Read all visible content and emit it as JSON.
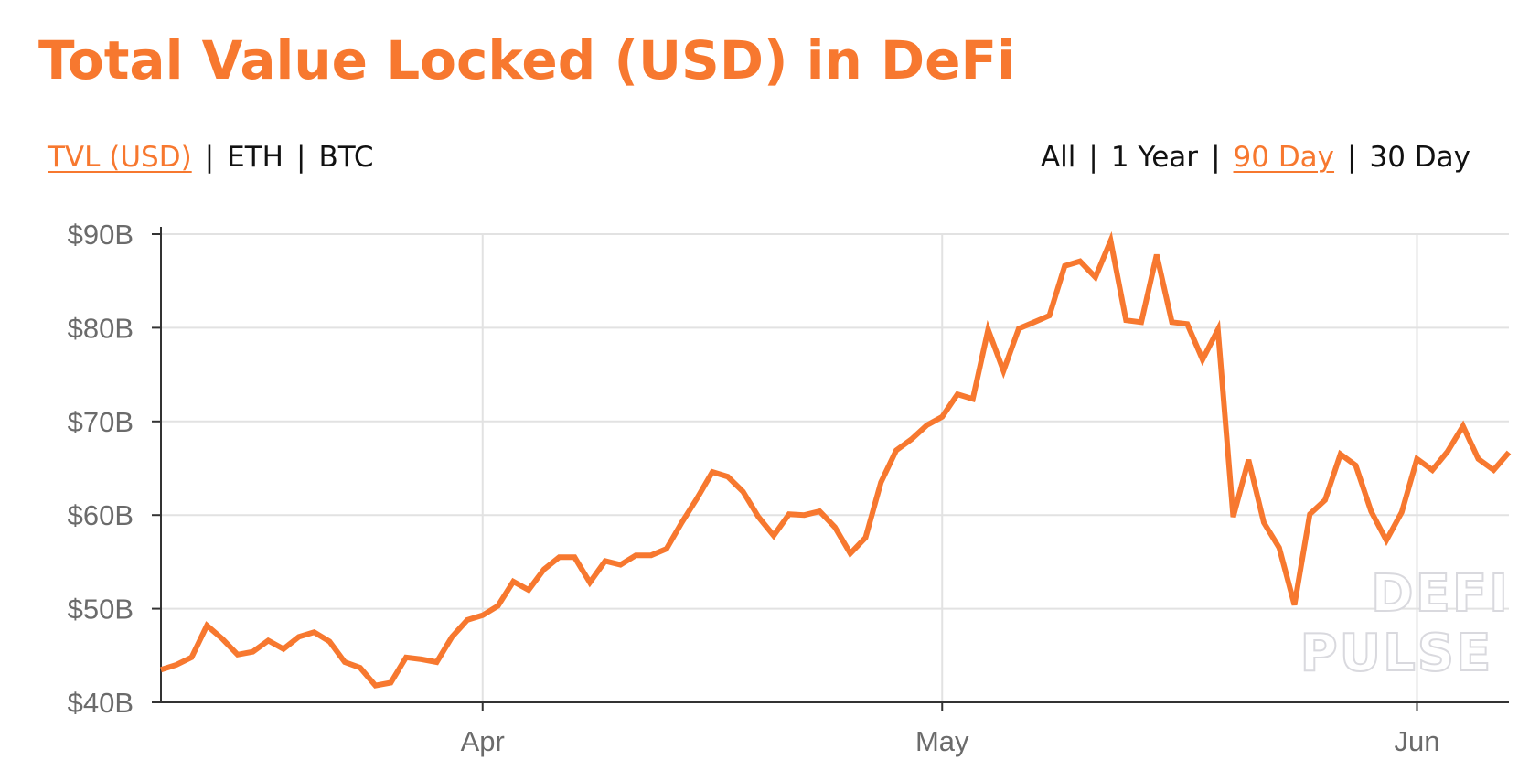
{
  "title": "Total Value Locked (USD) in DeFi",
  "metric_tabs": [
    {
      "label": "TVL (USD)",
      "active": true
    },
    {
      "label": "ETH",
      "active": false
    },
    {
      "label": "BTC",
      "active": false
    }
  ],
  "range_tabs": [
    {
      "label": "All",
      "active": false
    },
    {
      "label": "1 Year",
      "active": false
    },
    {
      "label": "90 Day",
      "active": true
    },
    {
      "label": "30 Day",
      "active": false
    }
  ],
  "separator": "|",
  "watermark": {
    "line1": "DEFI",
    "line2": "PULSE"
  },
  "colors": {
    "accent": "#f7782f",
    "line": "#f7782f",
    "grid": "#e2e2e2",
    "tick_text": "#6b6b6b"
  },
  "chart_data": {
    "type": "line",
    "title": "",
    "xlabel": "",
    "ylabel": "",
    "ylim": [
      40,
      90
    ],
    "y_ticks": [
      {
        "value": 90,
        "label": "$90B"
      },
      {
        "value": 80,
        "label": "$80B"
      },
      {
        "value": 70,
        "label": "$70B"
      },
      {
        "value": 60,
        "label": "$60B"
      },
      {
        "value": 50,
        "label": "$50B"
      },
      {
        "value": 40,
        "label": "$40B"
      }
    ],
    "x_ticks": [
      {
        "date": "2021-04-01",
        "label": "Apr"
      },
      {
        "date": "2021-05-01",
        "label": "May"
      },
      {
        "date": "2021-06-01",
        "label": "Jun"
      }
    ],
    "xlim": [
      "2021-03-11",
      "2021-06-07"
    ],
    "grid": true,
    "legend": "none",
    "series": [
      {
        "unit": "$B",
        "points": [
          [
            "2021-03-11",
            43.5
          ],
          [
            "2021-03-12",
            44.0
          ],
          [
            "2021-03-13",
            44.8
          ],
          [
            "2021-03-14",
            48.2
          ],
          [
            "2021-03-15",
            46.8
          ],
          [
            "2021-03-16",
            45.1
          ],
          [
            "2021-03-17",
            45.4
          ],
          [
            "2021-03-18",
            46.6
          ],
          [
            "2021-03-19",
            45.7
          ],
          [
            "2021-03-20",
            47.0
          ],
          [
            "2021-03-21",
            47.5
          ],
          [
            "2021-03-22",
            46.5
          ],
          [
            "2021-03-23",
            44.3
          ],
          [
            "2021-03-24",
            43.7
          ],
          [
            "2021-03-25",
            41.8
          ],
          [
            "2021-03-26",
            42.1
          ],
          [
            "2021-03-27",
            44.8
          ],
          [
            "2021-03-28",
            44.6
          ],
          [
            "2021-03-29",
            44.3
          ],
          [
            "2021-03-30",
            47.0
          ],
          [
            "2021-03-31",
            48.8
          ],
          [
            "2021-04-01",
            49.3
          ],
          [
            "2021-04-02",
            50.3
          ],
          [
            "2021-04-03",
            52.9
          ],
          [
            "2021-04-04",
            52.0
          ],
          [
            "2021-04-05",
            54.2
          ],
          [
            "2021-04-06",
            55.5
          ],
          [
            "2021-04-07",
            55.5
          ],
          [
            "2021-04-08",
            52.8
          ],
          [
            "2021-04-09",
            55.1
          ],
          [
            "2021-04-10",
            54.7
          ],
          [
            "2021-04-11",
            55.7
          ],
          [
            "2021-04-12",
            55.7
          ],
          [
            "2021-04-13",
            56.4
          ],
          [
            "2021-04-14",
            59.2
          ],
          [
            "2021-04-15",
            61.8
          ],
          [
            "2021-04-16",
            64.6
          ],
          [
            "2021-04-17",
            64.1
          ],
          [
            "2021-04-18",
            62.5
          ],
          [
            "2021-04-19",
            59.8
          ],
          [
            "2021-04-20",
            57.8
          ],
          [
            "2021-04-21",
            60.1
          ],
          [
            "2021-04-22",
            60.0
          ],
          [
            "2021-04-23",
            60.4
          ],
          [
            "2021-04-24",
            58.7
          ],
          [
            "2021-04-25",
            55.9
          ],
          [
            "2021-04-26",
            57.6
          ],
          [
            "2021-04-27",
            63.5
          ],
          [
            "2021-04-28",
            66.9
          ],
          [
            "2021-04-29",
            68.1
          ],
          [
            "2021-04-30",
            69.6
          ],
          [
            "2021-05-01",
            70.5
          ],
          [
            "2021-05-02",
            72.9
          ],
          [
            "2021-05-03",
            72.4
          ],
          [
            "2021-05-04",
            79.8
          ],
          [
            "2021-05-05",
            75.4
          ],
          [
            "2021-05-06",
            79.9
          ],
          [
            "2021-05-07",
            80.6
          ],
          [
            "2021-05-08",
            81.3
          ],
          [
            "2021-05-09",
            86.6
          ],
          [
            "2021-05-10",
            87.1
          ],
          [
            "2021-05-11",
            85.4
          ],
          [
            "2021-05-12",
            89.3
          ],
          [
            "2021-05-13",
            80.8
          ],
          [
            "2021-05-14",
            80.6
          ],
          [
            "2021-05-15",
            87.8
          ],
          [
            "2021-05-16",
            80.6
          ],
          [
            "2021-05-17",
            80.4
          ],
          [
            "2021-05-18",
            76.6
          ],
          [
            "2021-05-19",
            79.8
          ],
          [
            "2021-05-20",
            59.8
          ],
          [
            "2021-05-21",
            65.9
          ],
          [
            "2021-05-22",
            59.2
          ],
          [
            "2021-05-23",
            56.5
          ],
          [
            "2021-05-24",
            50.4
          ],
          [
            "2021-05-25",
            60.1
          ],
          [
            "2021-05-26",
            61.6
          ],
          [
            "2021-05-27",
            66.5
          ],
          [
            "2021-05-28",
            65.3
          ],
          [
            "2021-05-29",
            60.4
          ],
          [
            "2021-05-30",
            57.3
          ],
          [
            "2021-05-31",
            60.3
          ],
          [
            "2021-06-01",
            66.0
          ],
          [
            "2021-06-02",
            64.8
          ],
          [
            "2021-06-03",
            66.8
          ],
          [
            "2021-06-04",
            69.5
          ],
          [
            "2021-06-05",
            66.0
          ],
          [
            "2021-06-06",
            64.8
          ],
          [
            "2021-06-07",
            66.7
          ]
        ]
      }
    ]
  }
}
